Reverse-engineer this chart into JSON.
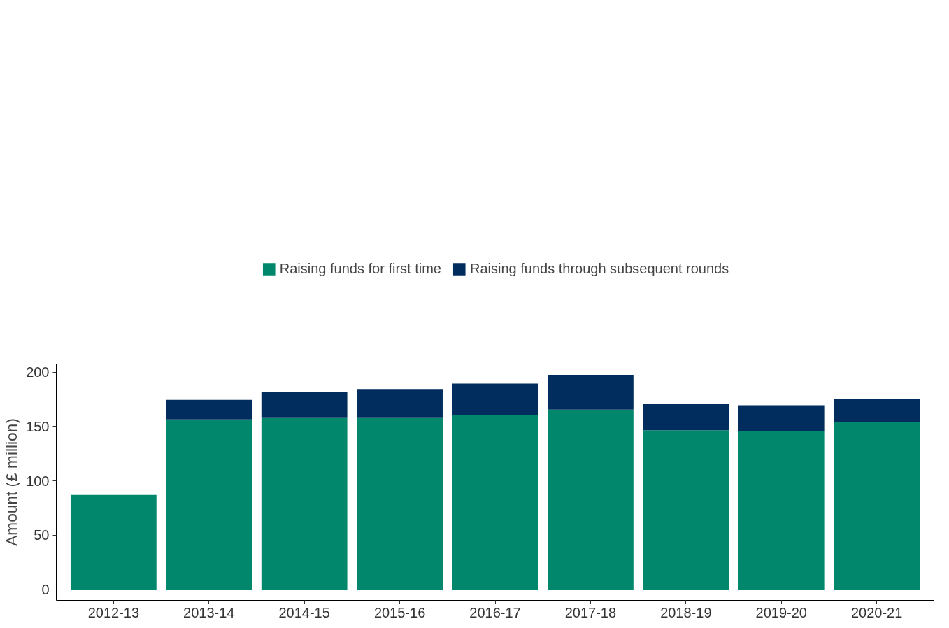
{
  "chart_data": {
    "type": "bar",
    "stacked": true,
    "ylabel": "Amount (£ million)",
    "categories": [
      "2012-13",
      "2013-14",
      "2014-15",
      "2015-16",
      "2016-17",
      "2017-18",
      "2018-19",
      "2019-20",
      "2020-21"
    ],
    "series": [
      {
        "name": "Raising funds for first time",
        "color": "#00876c",
        "values": [
          87,
          156.5,
          158.5,
          158.5,
          160.5,
          165.5,
          146.5,
          145.5,
          154.5
        ]
      },
      {
        "name": "Raising funds through subsequent rounds",
        "color": "#002d5e",
        "values": [
          null,
          18,
          23.5,
          26,
          29,
          32,
          24,
          24,
          21
        ]
      }
    ],
    "ylim": [
      -9.9,
      207.5
    ],
    "yticks": [
      0,
      50,
      100,
      150,
      200
    ],
    "grid": false,
    "legend": "top"
  }
}
